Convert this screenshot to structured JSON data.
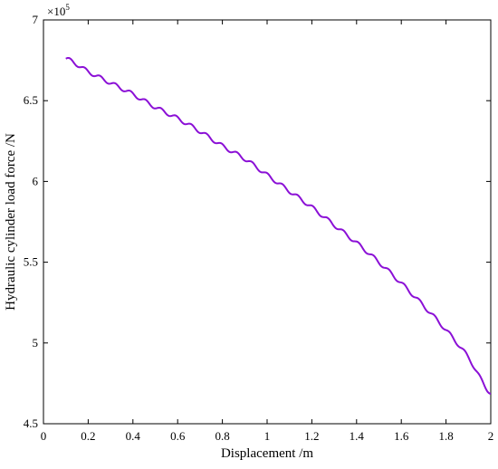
{
  "chart_data": {
    "type": "line",
    "xlabel": "Displacement /m",
    "ylabel": "Hydraulic cylinder load force /N",
    "y_exponent_label": "×10",
    "y_exponent_power": "5",
    "xlim": [
      0,
      2
    ],
    "ylim": [
      4.5,
      7
    ],
    "y_scale_factor": 100000,
    "x_ticks": [
      0,
      0.2,
      0.4,
      0.6,
      0.8,
      1,
      1.2,
      1.4,
      1.6,
      1.8,
      2
    ],
    "x_tick_labels": [
      "0",
      "0.2",
      "0.4",
      "0.6",
      "0.8",
      "1",
      "1.2",
      "1.4",
      "1.6",
      "1.8",
      "2"
    ],
    "y_ticks": [
      4.5,
      5,
      5.5,
      6,
      6.5,
      7
    ],
    "y_tick_labels": [
      "4.5",
      "5",
      "5.5",
      "6",
      "6.5",
      "7"
    ],
    "grid": false,
    "series": [
      {
        "color": "#8b10d6",
        "x": [
          0.1,
          0.2,
          0.3,
          0.4,
          0.5,
          0.6,
          0.7,
          0.8,
          0.9,
          1.0,
          1.1,
          1.2,
          1.3,
          1.4,
          1.5,
          1.6,
          1.7,
          1.8,
          1.9,
          2.0
        ],
        "y": [
          6.76,
          6.68,
          6.61,
          6.54,
          6.46,
          6.39,
          6.31,
          6.22,
          6.14,
          6.04,
          5.94,
          5.84,
          5.73,
          5.62,
          5.5,
          5.37,
          5.23,
          5.08,
          4.91,
          4.69
        ]
      }
    ]
  }
}
